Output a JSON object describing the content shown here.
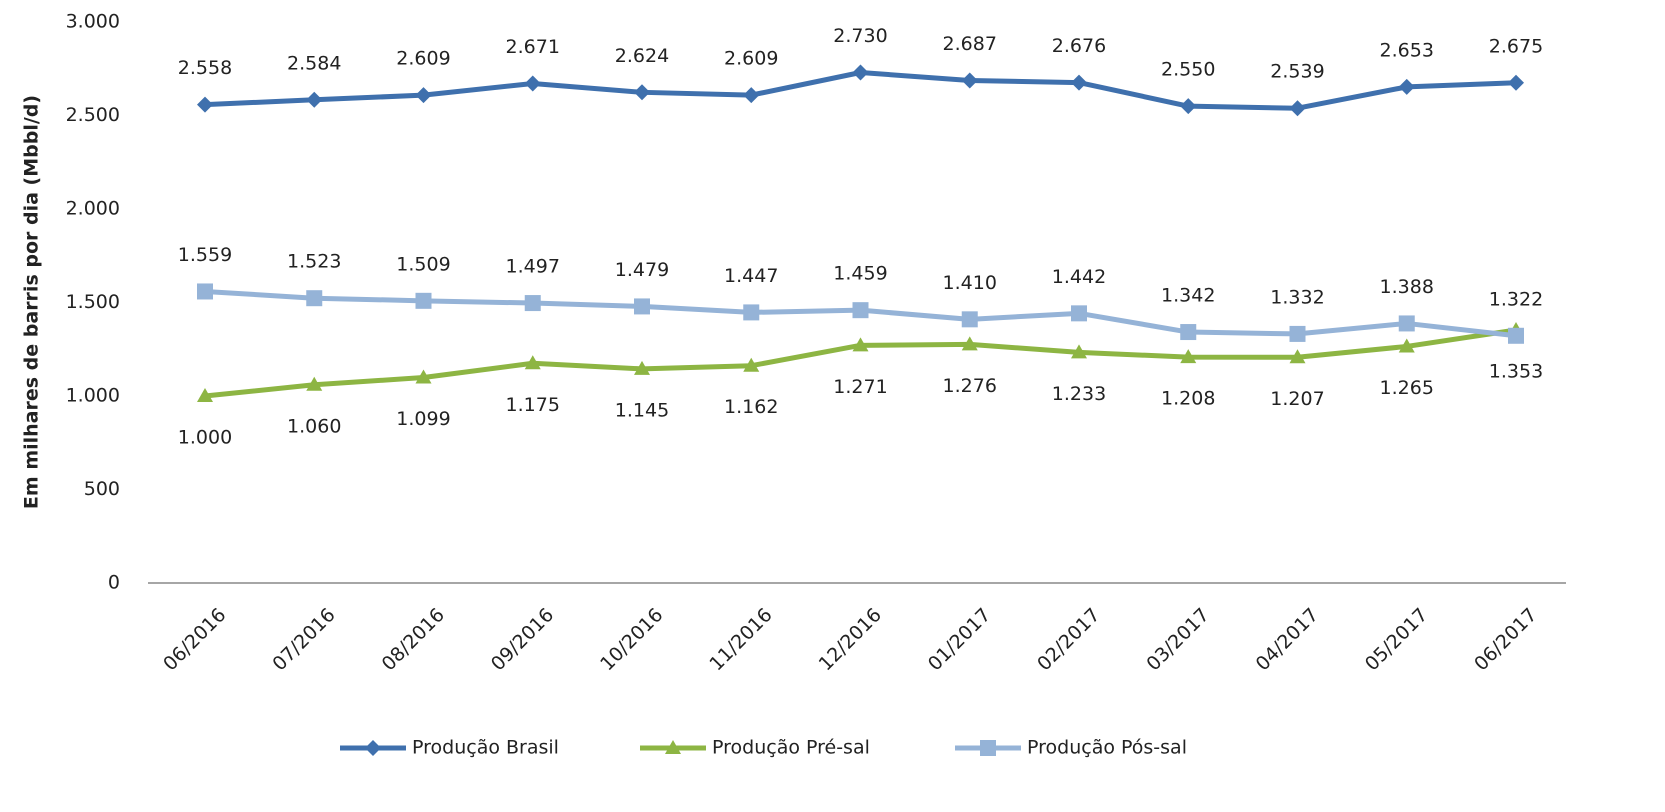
{
  "chart_data": {
    "type": "line",
    "y_label": "Em milhares de barris por dia (Mbbl/d)",
    "categories": [
      "06/2016",
      "07/2016",
      "08/2016",
      "09/2016",
      "10/2016",
      "11/2016",
      "12/2016",
      "01/2017",
      "02/2017",
      "03/2017",
      "04/2017",
      "05/2017",
      "06/2017"
    ],
    "ylim": [
      0,
      3000
    ],
    "yticks": [
      0,
      500,
      {
        "value": 1000,
        "label": "1.000"
      },
      {
        "value": 1500,
        "label": "1.500"
      },
      {
        "value": 2000,
        "label": "2.000"
      },
      {
        "value": 2500,
        "label": "2.500"
      },
      {
        "value": 3000,
        "label": "3.000"
      }
    ],
    "grid": false,
    "legend": "bottom",
    "series": [
      {
        "name": "Produção Brasil",
        "color": "#3f70ad",
        "marker": "diamond",
        "label_position": "above",
        "values": [
          2558,
          2584,
          2609,
          2671,
          2624,
          2609,
          2730,
          2687,
          2676,
          2550,
          2539,
          2653,
          2675
        ],
        "value_labels": [
          "2.558",
          "2.584",
          "2.609",
          "2.671",
          "2.624",
          "2.609",
          "2.730",
          "2.687",
          "2.676",
          "2.550",
          "2.539",
          "2.653",
          "2.675"
        ]
      },
      {
        "name": "Produção Pré-sal",
        "color": "#8db543",
        "marker": "triangle",
        "label_position": "below",
        "values": [
          1000,
          1060,
          1099,
          1175,
          1145,
          1162,
          1271,
          1276,
          1233,
          1208,
          1207,
          1265,
          1353
        ],
        "value_labels": [
          "1.000",
          "1.060",
          "1.099",
          "1.175",
          "1.145",
          "1.162",
          "1.271",
          "1.276",
          "1.233",
          "1.208",
          "1.207",
          "1.265",
          "1.353"
        ]
      },
      {
        "name": "Produção Pós-sal",
        "color": "#95b3d7",
        "marker": "square",
        "label_position": "above",
        "values": [
          1559,
          1523,
          1509,
          1497,
          1479,
          1447,
          1459,
          1410,
          1442,
          1342,
          1332,
          1388,
          1322
        ],
        "value_labels": [
          "1.559",
          "1.523",
          "1.509",
          "1.497",
          "1.479",
          "1.447",
          "1.459",
          "1.410",
          "1.442",
          "1.342",
          "1.332",
          "1.388",
          "1.322"
        ]
      }
    ]
  }
}
